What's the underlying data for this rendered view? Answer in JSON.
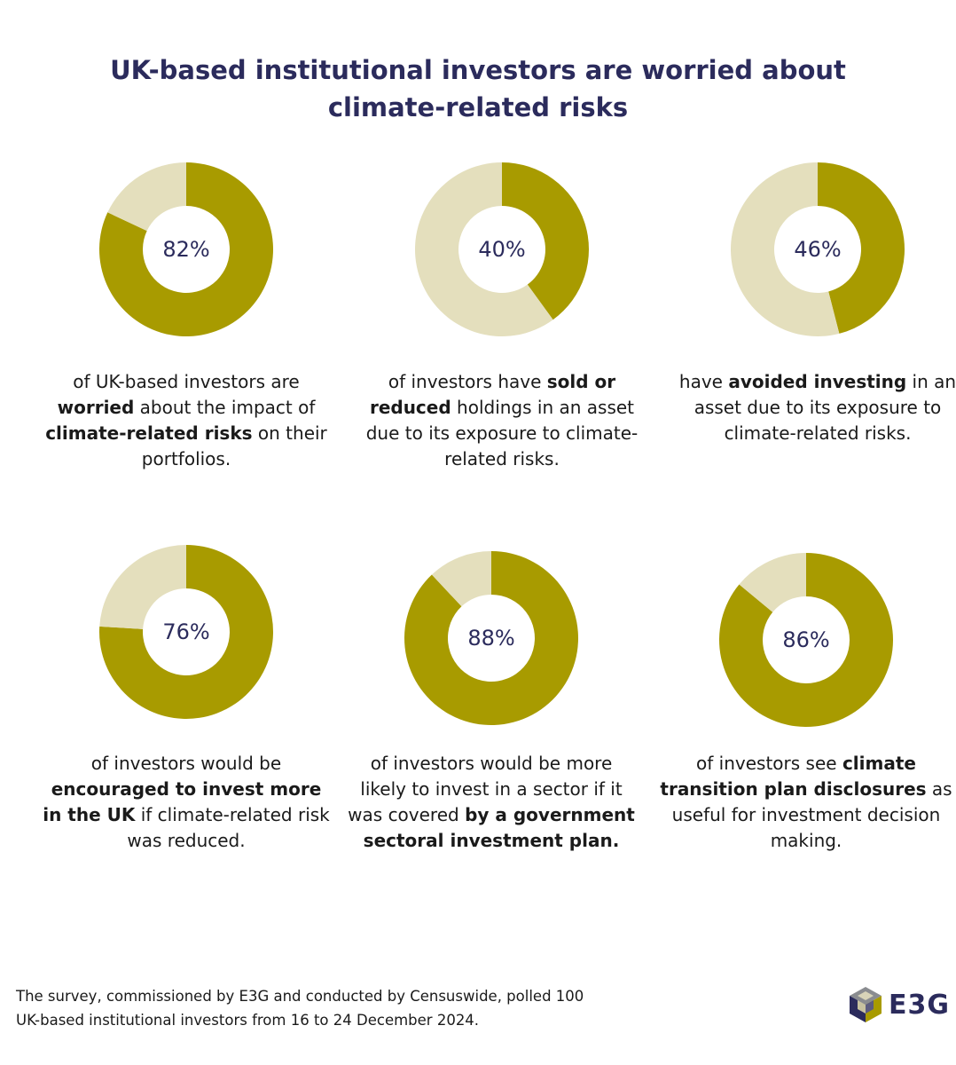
{
  "title": {
    "line1": "UK-based institutional investors are worried about",
    "line2": "climate-related risks"
  },
  "colors": {
    "filled": "#a89b00",
    "remainder": "#e4dfbd",
    "title": "#2b2b5c"
  },
  "chart_data": [
    {
      "type": "pie",
      "value": 82,
      "label": "82%",
      "caption": [
        {
          "t": "of UK-based investors are "
        },
        {
          "t": "worried",
          "b": true
        },
        {
          "t": " about the impact of "
        },
        {
          "t": "climate-related risks",
          "b": true
        },
        {
          "t": " on their portfolios."
        }
      ]
    },
    {
      "type": "pie",
      "value": 40,
      "label": "40%",
      "caption": [
        {
          "t": "of investors have "
        },
        {
          "t": "sold or reduced",
          "b": true
        },
        {
          "t": " holdings in an asset due to its exposure to climate-related risks."
        }
      ]
    },
    {
      "type": "pie",
      "value": 46,
      "label": "46%",
      "caption": [
        {
          "t": "have "
        },
        {
          "t": "avoided investing",
          "b": true
        },
        {
          "t": " in an asset due to its exposure to climate-related risks."
        }
      ]
    },
    {
      "type": "pie",
      "value": 76,
      "label": "76%",
      "caption": [
        {
          "t": "of investors would be "
        },
        {
          "t": "encouraged to invest more in the UK",
          "b": true
        },
        {
          "t": " if climate-related risk was reduced."
        }
      ]
    },
    {
      "type": "pie",
      "value": 88,
      "label": "88%",
      "caption": [
        {
          "t": "of investors would be more likely to invest in a sector if it was covered "
        },
        {
          "t": "by a government sectoral investment plan.",
          "b": true
        }
      ]
    },
    {
      "type": "pie",
      "value": 86,
      "label": "86%",
      "caption": [
        {
          "t": "of investors see "
        },
        {
          "t": "climate transition plan disclosures",
          "b": true
        },
        {
          "t": " as useful for investment decision making."
        }
      ]
    }
  ],
  "footnote": {
    "line1": "The survey, commissioned by E3G and conducted by Censuswide, polled 100",
    "line2": "UK-based institutional investors from 16 to 24 December 2024."
  },
  "logo": {
    "text": "E3G",
    "icon": "e3g-cube-icon"
  }
}
